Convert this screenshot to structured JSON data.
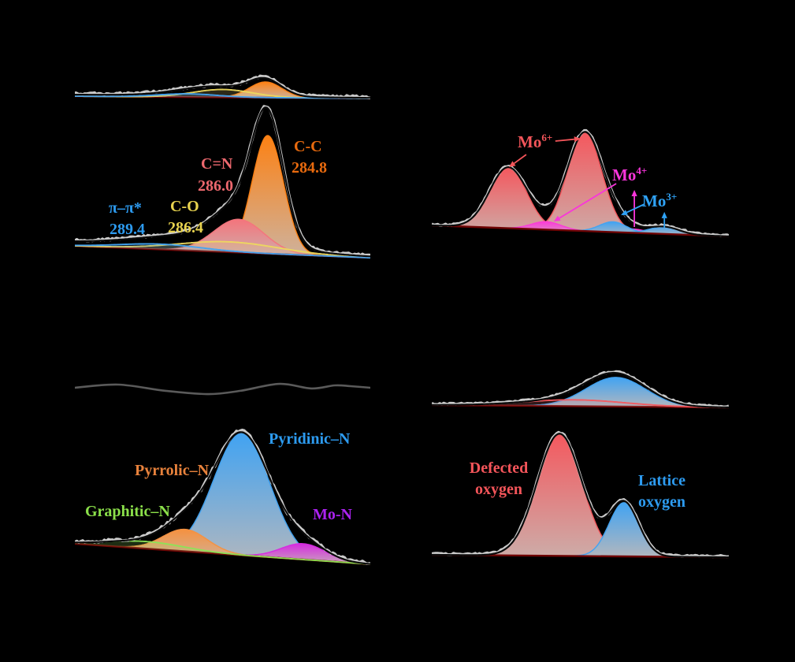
{
  "figure": {
    "background": "#000000"
  },
  "chart_data": [
    {
      "id": "c1s",
      "type": "area",
      "axes_visible": false,
      "spectra": [
        {
          "name": "upper-trace",
          "baseline": [
            0.165,
            0.176
          ],
          "noise": 1.4,
          "peaks": [
            {
              "name": "C-C",
              "color": "#FC8114",
              "center": 0.645,
              "amp": 0.078,
              "sigma": 0.055,
              "style": "fill"
            },
            {
              "name": "C-O",
              "color": "#EDD95E",
              "center": 0.5,
              "amp": 0.039,
              "sigma": 0.1,
              "style": "line"
            },
            {
              "name": "pi-pi*",
              "color": "#41A3F2",
              "center": 0.38,
              "amp": 0.016,
              "sigma": 0.1,
              "style": "line"
            },
            {
              "name": "background",
              "color": "#000000",
              "center": 0.1,
              "amp": 0.008,
              "sigma": 0.6,
              "style": "hidden"
            }
          ]
        },
        {
          "name": "lower-trace",
          "baseline": [
            0.91,
            0.969
          ],
          "noise": 1.2,
          "peaks": [
            {
              "name": "C-C 284.8 eV",
              "color": "#FC8114",
              "center": 0.653,
              "amp": 0.588,
              "sigma": 0.053,
              "style": "fill"
            },
            {
              "name": "C=N 286.0 eV",
              "color": "#F4747C",
              "center": 0.555,
              "amp": 0.165,
              "sigma": 0.085,
              "style": "fill"
            },
            {
              "name": "C-O 286.4 eV",
              "color": "#EDD95E",
              "center": 0.52,
              "amp": 0.051,
              "sigma": 0.17,
              "style": "line"
            },
            {
              "name": "pi-pi* 289.4 eV",
              "color": "#41A3F2",
              "center": 0.29,
              "amp": 0.026,
              "sigma": 0.14,
              "style": "line"
            },
            {
              "name": "background",
              "color": "#000000",
              "center": 0.05,
              "amp": 0.02,
              "sigma": 0.6,
              "style": "hidden"
            }
          ]
        }
      ],
      "annotations": [
        {
          "id": "cc",
          "text": "C-C",
          "value": "284.8",
          "color": "#E86A0E"
        },
        {
          "id": "cn",
          "text": "C=N",
          "value": "286.0",
          "color": "#ED686E"
        },
        {
          "id": "co",
          "text": "C-O",
          "value": "286.4",
          "color": "#E8D34F"
        },
        {
          "id": "pi",
          "text": "π–π*",
          "value": "289.4",
          "color": "#2D9BF0"
        }
      ]
    },
    {
      "id": "mo3d",
      "type": "area",
      "axes_visible": false,
      "spectra": [
        {
          "name": "trace",
          "baseline": [
            0.845,
            0.935
          ],
          "noise": 1.2,
          "peaks": [
            {
              "name": "Mo6+ doublet low-BE",
              "color": "#F4585E",
              "center": 0.257,
              "amp": 0.497,
              "sigma": 0.062,
              "style": "fill"
            },
            {
              "name": "Mo6+ doublet high-BE",
              "color": "#F4585E",
              "center": 0.515,
              "amp": 0.8,
              "sigma": 0.058,
              "style": "fill"
            },
            {
              "name": "Mo4+ component a",
              "color": "#FB3BD8",
              "center": 0.385,
              "amp": 0.065,
              "sigma": 0.05,
              "style": "fill"
            },
            {
              "name": "Mo4+ component b",
              "color": "#FB3BD8",
              "center": 0.67,
              "amp": 0.032,
              "sigma": 0.05,
              "style": "fill"
            },
            {
              "name": "Mo3+ component a",
              "color": "#41A3F2",
              "center": 0.61,
              "amp": 0.084,
              "sigma": 0.045,
              "style": "fill"
            },
            {
              "name": "Mo3+ component b",
              "color": "#41A3F2",
              "center": 0.783,
              "amp": 0.058,
              "sigma": 0.05,
              "style": "fill"
            }
          ]
        }
      ],
      "annotations": [
        {
          "id": "mo6",
          "text": "Mo",
          "sup": "6+",
          "color": "#F4555A"
        },
        {
          "id": "mo4",
          "text": "Mo",
          "sup": "4+",
          "color": "#F935DB"
        },
        {
          "id": "mo3",
          "text": "Mo",
          "sup": "3+",
          "color": "#2FA3F7"
        }
      ]
    },
    {
      "id": "n1s",
      "type": "area",
      "axes_visible": false,
      "spectra": [
        {
          "name": "upper-trace",
          "style": "polyline",
          "color": "#5A5A5A",
          "points": [
            [
              0,
              0.057
            ],
            [
              0.147,
              0.041
            ],
            [
              0.307,
              0.073
            ],
            [
              0.453,
              0.09
            ],
            [
              0.56,
              0.073
            ],
            [
              0.693,
              0.037
            ],
            [
              0.8,
              0.061
            ],
            [
              0.88,
              0.045
            ],
            [
              0.933,
              0.049
            ],
            [
              1,
              0.057
            ]
          ]
        },
        {
          "name": "lower-trace",
          "baseline": [
            0.865,
            0.971
          ],
          "noise": 1.8,
          "peaks": [
            {
              "name": "Pyridinic-N",
              "color": "#41A3F2",
              "center": 0.565,
              "amp": 0.63,
              "sigma": 0.095,
              "style": "fill"
            },
            {
              "name": "Pyrrolic-N",
              "color": "#F59140",
              "center": 0.373,
              "amp": 0.114,
              "sigma": 0.075,
              "style": "fill"
            },
            {
              "name": "Graphitic-N",
              "color": "#8CE455",
              "center": 0.24,
              "amp": 0.037,
              "sigma": 0.13,
              "style": "line"
            },
            {
              "name": "Mo-N",
              "color": "#D62BE0",
              "center": 0.773,
              "amp": 0.082,
              "sigma": 0.075,
              "style": "fill"
            }
          ]
        }
      ],
      "annotations": [
        {
          "id": "pyrrolic",
          "text": "Pyrrolic–N",
          "color": "#E8823C"
        },
        {
          "id": "pyridinic",
          "text": "Pyridinic–N",
          "color": "#2D9BF0"
        },
        {
          "id": "graphitic",
          "text": "Graphitic–N",
          "color": "#8BE04A"
        },
        {
          "id": "mon",
          "text": "Mo-N",
          "color": "#AB22F0"
        }
      ]
    },
    {
      "id": "o1s",
      "type": "area",
      "axes_visible": false,
      "spectra": [
        {
          "name": "upper-trace",
          "baseline": [
            0.215,
            0.227
          ],
          "noise": 1.0,
          "peaks": [
            {
              "name": "lattice oxygen",
              "color": "#41A3F2",
              "center": 0.62,
              "amp": 0.142,
              "sigma": 0.1,
              "style": "fill"
            },
            {
              "name": "defected oxygen",
              "color": "#F4585E",
              "center": 0.48,
              "amp": 0.031,
              "sigma": 0.17,
              "style": "line"
            }
          ]
        },
        {
          "name": "lower-trace",
          "baseline": [
            0.946,
            0.958
          ],
          "noise": 1.0,
          "peaks": [
            {
              "name": "Defected oxygen",
              "color": "#F4585E",
              "center": 0.43,
              "amp": 0.596,
              "sigma": 0.075,
              "style": "fill"
            },
            {
              "name": "Lattice oxygen",
              "color": "#41A3F2",
              "center": 0.647,
              "amp": 0.262,
              "sigma": 0.05,
              "style": "fill"
            }
          ]
        }
      ],
      "annotations": [
        {
          "id": "defected",
          "line1": "Defected",
          "line2": "oxygen",
          "color": "#F4555A"
        },
        {
          "id": "lattice",
          "line1": "Lattice",
          "line2": "oxygen",
          "color": "#2D9BF0"
        }
      ]
    }
  ]
}
